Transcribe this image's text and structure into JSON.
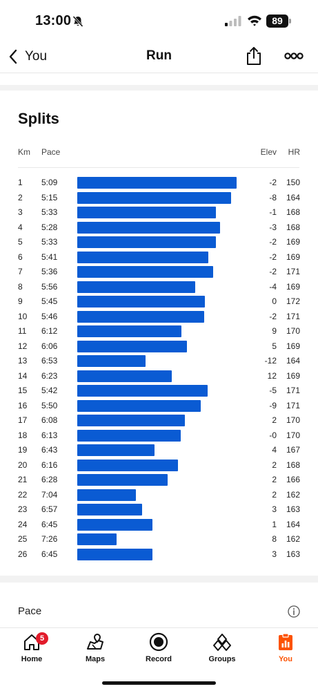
{
  "status_bar": {
    "time": "13:00",
    "battery": "89"
  },
  "nav": {
    "back_label": "You",
    "title": "Run"
  },
  "splits": {
    "title": "Splits",
    "headers": {
      "km": "Km",
      "pace": "Pace",
      "elev": "Elev",
      "hr": "HR"
    },
    "bar_color": "#0a5bd3",
    "rows": [
      {
        "km": "1",
        "pace": "5:09",
        "elev": "-2",
        "hr": "150",
        "pace_seconds": 309
      },
      {
        "km": "2",
        "pace": "5:15",
        "elev": "-8",
        "hr": "164",
        "pace_seconds": 315
      },
      {
        "km": "3",
        "pace": "5:33",
        "elev": "-1",
        "hr": "168",
        "pace_seconds": 333
      },
      {
        "km": "4",
        "pace": "5:28",
        "elev": "-3",
        "hr": "168",
        "pace_seconds": 328
      },
      {
        "km": "5",
        "pace": "5:33",
        "elev": "-2",
        "hr": "169",
        "pace_seconds": 333
      },
      {
        "km": "6",
        "pace": "5:41",
        "elev": "-2",
        "hr": "169",
        "pace_seconds": 341
      },
      {
        "km": "7",
        "pace": "5:36",
        "elev": "-2",
        "hr": "171",
        "pace_seconds": 336
      },
      {
        "km": "8",
        "pace": "5:56",
        "elev": "-4",
        "hr": "169",
        "pace_seconds": 356
      },
      {
        "km": "9",
        "pace": "5:45",
        "elev": "0",
        "hr": "172",
        "pace_seconds": 345
      },
      {
        "km": "10",
        "pace": "5:46",
        "elev": "-2",
        "hr": "171",
        "pace_seconds": 346
      },
      {
        "km": "11",
        "pace": "6:12",
        "elev": "9",
        "hr": "170",
        "pace_seconds": 372
      },
      {
        "km": "12",
        "pace": "6:06",
        "elev": "5",
        "hr": "169",
        "pace_seconds": 366
      },
      {
        "km": "13",
        "pace": "6:53",
        "elev": "-12",
        "hr": "164",
        "pace_seconds": 413
      },
      {
        "km": "14",
        "pace": "6:23",
        "elev": "12",
        "hr": "169",
        "pace_seconds": 383
      },
      {
        "km": "15",
        "pace": "5:42",
        "elev": "-5",
        "hr": "171",
        "pace_seconds": 342
      },
      {
        "km": "16",
        "pace": "5:50",
        "elev": "-9",
        "hr": "171",
        "pace_seconds": 350
      },
      {
        "km": "17",
        "pace": "6:08",
        "elev": "2",
        "hr": "170",
        "pace_seconds": 368
      },
      {
        "km": "18",
        "pace": "6:13",
        "elev": "-0",
        "hr": "170",
        "pace_seconds": 373
      },
      {
        "km": "19",
        "pace": "6:43",
        "elev": "4",
        "hr": "167",
        "pace_seconds": 403
      },
      {
        "km": "20",
        "pace": "6:16",
        "elev": "2",
        "hr": "168",
        "pace_seconds": 376
      },
      {
        "km": "21",
        "pace": "6:28",
        "elev": "2",
        "hr": "166",
        "pace_seconds": 388
      },
      {
        "km": "22",
        "pace": "7:04",
        "elev": "2",
        "hr": "162",
        "pace_seconds": 424
      },
      {
        "km": "23",
        "pace": "6:57",
        "elev": "3",
        "hr": "163",
        "pace_seconds": 417
      },
      {
        "km": "24",
        "pace": "6:45",
        "elev": "1",
        "hr": "164",
        "pace_seconds": 405
      },
      {
        "km": "25",
        "pace": "7:26",
        "elev": "8",
        "hr": "162",
        "pace_seconds": 446
      },
      {
        "km": "26",
        "pace": "6:45",
        "elev": "3",
        "hr": "163",
        "pace_seconds": 405
      }
    ]
  },
  "pace_section": {
    "label": "Pace"
  },
  "tab_bar": {
    "accent_color": "#fc5200",
    "home_badge": "5",
    "tabs": [
      {
        "label": "Home",
        "icon": "home-icon"
      },
      {
        "label": "Maps",
        "icon": "map-icon"
      },
      {
        "label": "Record",
        "icon": "record-icon"
      },
      {
        "label": "Groups",
        "icon": "groups-icon"
      },
      {
        "label": "You",
        "icon": "you-icon",
        "active": true
      }
    ]
  }
}
